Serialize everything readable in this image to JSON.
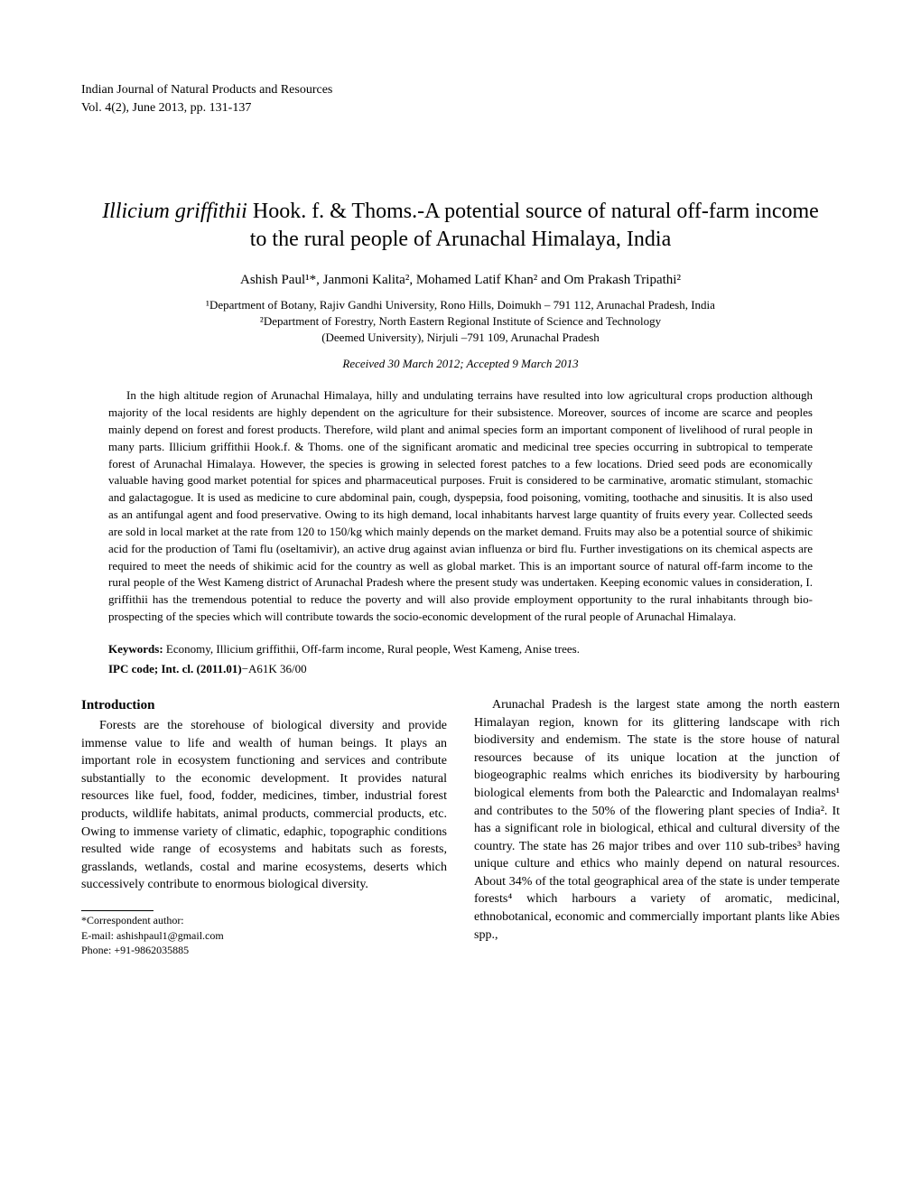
{
  "header": {
    "journal": "Indian Journal of Natural Products and Resources",
    "volume": "Vol. 4(2), June 2013, pp. 131-137"
  },
  "title": {
    "line1_italic": "Illicium griffithii",
    "line1_rest": " Hook. f. & Thoms.-A potential source of natural off-farm income",
    "line2": "to the rural people of Arunachal Himalaya, India"
  },
  "authors": "Ashish Paul¹*, Janmoni Kalita², Mohamed Latif Khan² and Om Prakash Tripathi²",
  "affiliations": {
    "aff1": "¹Department of Botany, Rajiv Gandhi University, Rono Hills, Doimukh – 791 112, Arunachal Pradesh, India",
    "aff2": "²Department of Forestry, North Eastern Regional Institute of Science and Technology",
    "aff3": "(Deemed University), Nirjuli –791 109, Arunachal Pradesh"
  },
  "received": "Received 30 March 2012; Accepted 9 March 2013",
  "abstract": "In the high altitude region of Arunachal Himalaya, hilly and undulating terrains have resulted into low agricultural crops production although majority of the local residents are highly dependent on the agriculture for their subsistence. Moreover, sources of income are scarce and peoples mainly depend on forest and forest products. Therefore, wild plant and animal species form an important component of livelihood of rural people in many parts. Illicium griffithii Hook.f. & Thoms. one of the significant aromatic and medicinal tree species occurring in subtropical to temperate forest of Arunachal Himalaya. However, the species is growing in selected forest patches to a few locations. Dried seed pods are economically valuable having good market potential for spices and pharmaceutical purposes. Fruit is considered to be carminative, aromatic stimulant, stomachic and galactagogue. It is used as medicine to cure abdominal pain, cough, dyspepsia, food poisoning, vomiting, toothache and sinusitis. It is also used as an antifungal agent and food preservative. Owing to its high demand, local inhabitants harvest large quantity of fruits every year. Collected seeds are sold in local market at the rate from 120 to 150/kg which mainly depends on the market demand. Fruits may also be a potential source of shikimic acid for the production of Tami flu (oseltamivir), an active drug against avian influenza or bird flu. Further investigations on its chemical aspects are required to meet the needs of shikimic acid for the country as well as global market. This is an important source of natural off-farm income to the rural people of the West Kameng district of Arunachal Pradesh where the present study was undertaken. Keeping economic values in consideration, I. griffithii has the tremendous potential to reduce the poverty and will also provide employment opportunity to the rural inhabitants through bio-prospecting of the species which will contribute towards the socio-economic development of the rural people of Arunachal Himalaya.",
  "keywords": {
    "label": "Keywords:",
    "text": " Economy, Illicium griffithii, Off-farm income, Rural people, West Kameng, Anise trees."
  },
  "ipc": {
    "label": "IPC code; Int. cl. (2011.01)",
    "text": "−A61K 36/00"
  },
  "introduction": {
    "heading": "Introduction",
    "para1": "Forests are the storehouse of biological diversity and provide immense value to life and wealth of human beings. It plays an important role in ecosystem functioning and services and contribute substantially to the economic development. It provides natural resources like fuel, food, fodder, medicines, timber, industrial forest products, wildlife habitats, animal products, commercial products, etc. Owing to immense variety of climatic, edaphic, topographic conditions resulted wide range of ecosystems and habitats such as forests, grasslands, wetlands, costal and marine ecosystems, deserts which successively contribute to enormous biological diversity.",
    "para2": "Arunachal Pradesh is the largest state among the north eastern Himalayan region, known for its glittering landscape with rich biodiversity and endemism. The state is the store house of natural resources because of its unique location at the junction of biogeographic realms which enriches its biodiversity by harbouring biological elements from both the Palearctic and Indomalayan realms¹ and contributes to the 50% of the flowering plant species of India². It has a significant role in biological, ethical and cultural diversity of the country. The state has 26 major tribes and over 110 sub-tribes³ having unique culture and ethics who mainly depend on natural resources. About 34% of the total geographical area of the state is under temperate forests⁴ which harbours a variety of aromatic, medicinal, ethnobotanical, economic and commercially important plants like Abies spp.,"
  },
  "footnote": {
    "line1": "*Correspondent author:",
    "line2": "E-mail: ashishpaul1@gmail.com",
    "line3": "Phone: +91-9862035885"
  }
}
